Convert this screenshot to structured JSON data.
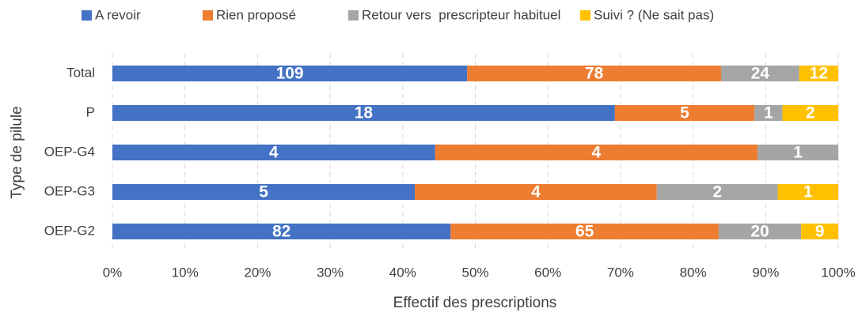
{
  "chart_data": {
    "type": "bar",
    "orientation": "horizontal",
    "stacking": "percent",
    "xlabel": "Effectif des prescriptions",
    "ylabel": "Type de pilule",
    "categories": [
      "Total",
      "P",
      "OEP-G4",
      "OEP-G3",
      "OEP-G2"
    ],
    "series": [
      {
        "name": "A revoir",
        "color": "#4472c4",
        "values": [
          109,
          18,
          4,
          5,
          82
        ]
      },
      {
        "name": "Rien proposé",
        "color": "#ed7d31",
        "values": [
          78,
          5,
          4,
          4,
          65
        ]
      },
      {
        "name": "Retour vers  prescripteur habituel",
        "color": "#a5a5a5",
        "values": [
          24,
          1,
          1,
          2,
          20
        ]
      },
      {
        "name": "Suivi ? (Ne sait pas)",
        "color": "#ffc000",
        "values": [
          12,
          2,
          null,
          1,
          9
        ]
      }
    ],
    "xlim": [
      0,
      100
    ],
    "xticks": [
      {
        "value": 0,
        "label": "0%"
      },
      {
        "value": 10,
        "label": "10%"
      },
      {
        "value": 20,
        "label": "20%"
      },
      {
        "value": 30,
        "label": "30%"
      },
      {
        "value": 40,
        "label": "40%"
      },
      {
        "value": 50,
        "label": "50%"
      },
      {
        "value": 60,
        "label": "60%"
      },
      {
        "value": 70,
        "label": "70%"
      },
      {
        "value": 80,
        "label": "80%"
      },
      {
        "value": 90,
        "label": "90%"
      },
      {
        "value": 100,
        "label": "100%"
      }
    ],
    "grid": true,
    "legend": "top"
  }
}
